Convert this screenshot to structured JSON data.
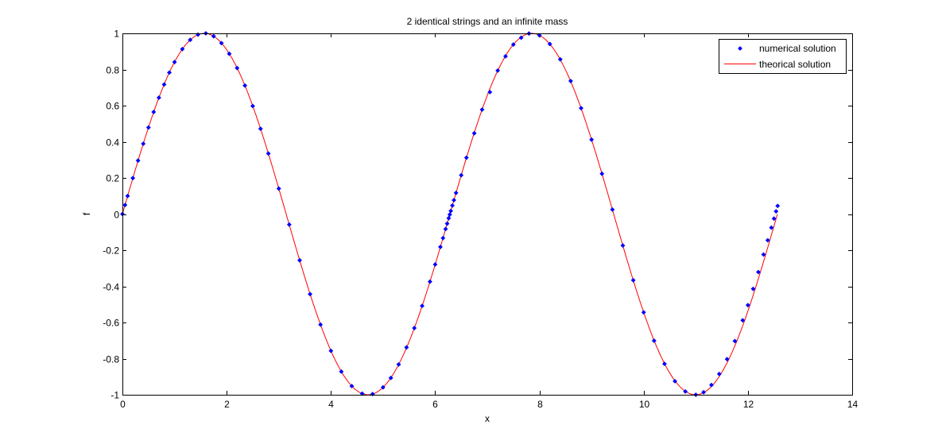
{
  "figure": {
    "background": "#ffffff"
  },
  "chart_data": {
    "type": "line",
    "title": "2 identical strings and an infinite mass",
    "xlabel": "x",
    "ylabel": "f",
    "xlim": [
      0,
      14
    ],
    "ylim": [
      -1,
      1
    ],
    "x_ticks": [
      0,
      2,
      4,
      6,
      8,
      10,
      12,
      14
    ],
    "y_ticks": [
      -1,
      -0.8,
      -0.6,
      -0.4,
      -0.2,
      0,
      0.2,
      0.4,
      0.6,
      0.8,
      1
    ],
    "x_tick_labels": [
      "0",
      "2",
      "4",
      "6",
      "8",
      "10",
      "12",
      "14"
    ],
    "y_tick_labels": [
      "-1",
      "-0.8",
      "-0.6",
      "-0.4",
      "-0.2",
      "0",
      "0.2",
      "0.4",
      "0.6",
      "0.8",
      "1"
    ],
    "grid": false,
    "box": true,
    "legend": {
      "placement": "top-right",
      "entries": [
        "numerical solution",
        "theorical solution"
      ]
    },
    "series": [
      {
        "name": "numerical solution",
        "style": "markers",
        "marker": "diamond",
        "color": "#0000ff",
        "x": [
          0.0,
          0.05,
          0.1,
          0.2,
          0.3,
          0.4,
          0.5,
          0.6,
          0.7,
          0.8,
          0.9,
          1.0,
          1.15,
          1.3,
          1.45,
          1.6,
          1.75,
          1.9,
          2.05,
          2.2,
          2.35,
          2.5,
          2.65,
          2.8,
          3.0,
          3.2,
          3.4,
          3.6,
          3.8,
          4.0,
          4.2,
          4.4,
          4.6,
          4.8,
          5.0,
          5.15,
          5.3,
          5.45,
          5.6,
          5.75,
          5.9,
          6.0,
          6.1,
          6.15,
          6.2,
          6.23,
          6.26,
          6.28,
          6.3,
          6.33,
          6.36,
          6.4,
          6.5,
          6.6,
          6.75,
          6.9,
          7.05,
          7.2,
          7.35,
          7.5,
          7.65,
          7.8,
          8.0,
          8.2,
          8.4,
          8.6,
          8.8,
          9.0,
          9.2,
          9.4,
          9.6,
          9.8,
          10.0,
          10.2,
          10.4,
          10.6,
          10.8,
          11.0,
          11.15,
          11.3,
          11.45,
          11.6,
          11.75,
          11.9,
          12.0,
          12.1,
          12.2,
          12.3,
          12.38,
          12.45,
          12.5,
          12.54,
          12.57
        ],
        "y": [
          0.0,
          0.05,
          0.1,
          0.199,
          0.296,
          0.389,
          0.479,
          0.565,
          0.644,
          0.717,
          0.783,
          0.841,
          0.913,
          0.964,
          0.993,
          1.0,
          0.984,
          0.946,
          0.887,
          0.808,
          0.711,
          0.598,
          0.472,
          0.335,
          0.141,
          -0.058,
          -0.256,
          -0.443,
          -0.612,
          -0.757,
          -0.872,
          -0.952,
          -0.994,
          -0.996,
          -0.959,
          -0.907,
          -0.832,
          -0.738,
          -0.631,
          -0.508,
          -0.374,
          -0.279,
          -0.182,
          -0.133,
          -0.083,
          -0.053,
          -0.023,
          -0.003,
          0.017,
          0.047,
          0.077,
          0.117,
          0.215,
          0.312,
          0.447,
          0.578,
          0.675,
          0.794,
          0.873,
          0.938,
          0.976,
          0.999,
          0.989,
          0.941,
          0.856,
          0.736,
          0.586,
          0.412,
          0.223,
          0.025,
          -0.174,
          -0.366,
          -0.544,
          -0.701,
          -0.829,
          -0.925,
          -0.982,
          -1.0,
          -0.986,
          -0.946,
          -0.885,
          -0.803,
          -0.703,
          -0.588,
          -0.504,
          -0.414,
          -0.321,
          -0.224,
          -0.145,
          -0.075,
          -0.025,
          0.015,
          0.045
        ]
      },
      {
        "name": "theorical solution",
        "style": "line",
        "color": "#ff0000",
        "function": "sin(x)",
        "x_range": [
          0,
          12.566
        ]
      }
    ]
  }
}
